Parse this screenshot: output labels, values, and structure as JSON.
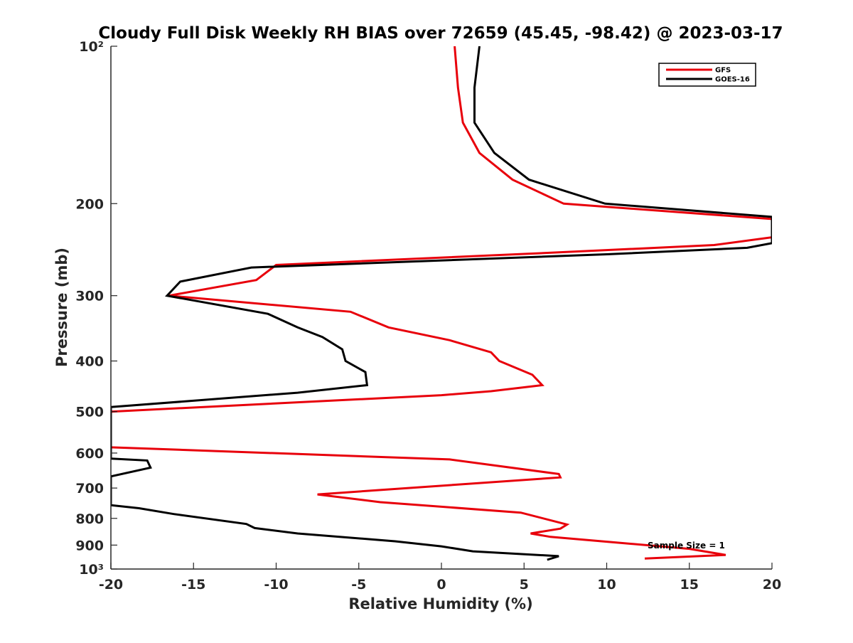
{
  "chart_data": {
    "type": "line",
    "title": "Cloudy Full Disk Weekly RH BIAS over 72659 (45.45, -98.42) @ 2023-03-17",
    "xlabel": "Relative Humidity (%)",
    "ylabel": "Pressure (mb)",
    "xlim": [
      -20,
      20
    ],
    "ylim": [
      100,
      1000
    ],
    "yscale": "log",
    "y_reversed": true,
    "grid": false,
    "legend_position": "top-right",
    "x_ticks": [
      -20,
      -15,
      -10,
      -5,
      0,
      5,
      10,
      15,
      20
    ],
    "x_tick_labels": [
      "-20",
      "-15",
      "-10",
      "-5",
      "0",
      "5",
      "10",
      "15",
      "20"
    ],
    "y_ticks": [
      100,
      200,
      300,
      400,
      500,
      600,
      700,
      800,
      900,
      1000
    ],
    "y_tick_labels": [
      "10²",
      "200",
      "300",
      "400",
      "500",
      "600",
      "700",
      "800",
      "900",
      "10³"
    ],
    "annotation": "Sample Size = 1",
    "series": [
      {
        "name": "GFS",
        "color": "#e8000b",
        "points": [
          [
            0.8,
            100
          ],
          [
            1.0,
            120
          ],
          [
            1.3,
            140
          ],
          [
            2.3,
            160
          ],
          [
            4.3,
            180
          ],
          [
            7.4,
            200
          ],
          [
            20.0,
            214
          ],
          [
            20.0,
            232
          ],
          [
            16.5,
            240
          ],
          [
            7.0,
            248
          ],
          [
            -10.0,
            262
          ],
          [
            -11.2,
            280
          ],
          [
            -16.5,
            300
          ],
          [
            -5.5,
            322
          ],
          [
            -3.2,
            345
          ],
          [
            0.5,
            365
          ],
          [
            3.0,
            385
          ],
          [
            3.5,
            400
          ],
          [
            5.5,
            425
          ],
          [
            6.1,
            445
          ],
          [
            3.0,
            457
          ],
          [
            0.0,
            465
          ],
          [
            -20.0,
            500
          ],
          [
            -20.0,
            585
          ],
          [
            0.5,
            617
          ],
          [
            7.1,
            658
          ],
          [
            7.2,
            668
          ],
          [
            -7.5,
            720
          ],
          [
            -3.7,
            745
          ],
          [
            4.8,
            780
          ],
          [
            7.6,
            822
          ],
          [
            7.2,
            837
          ],
          [
            5.4,
            855
          ],
          [
            6.6,
            868
          ],
          [
            15.0,
            915
          ],
          [
            17.2,
            940
          ],
          [
            12.3,
            955
          ]
        ]
      },
      {
        "name": "GOES-16",
        "color": "#000000",
        "points": [
          [
            2.3,
            100
          ],
          [
            2.0,
            120
          ],
          [
            2.0,
            140
          ],
          [
            3.2,
            160
          ],
          [
            5.3,
            180
          ],
          [
            9.9,
            200
          ],
          [
            20.0,
            212
          ],
          [
            20.0,
            238
          ],
          [
            18.5,
            243
          ],
          [
            10.0,
            250
          ],
          [
            -11.5,
            265
          ],
          [
            -15.8,
            282
          ],
          [
            -16.6,
            300
          ],
          [
            -10.5,
            325
          ],
          [
            -8.7,
            345
          ],
          [
            -7.2,
            360
          ],
          [
            -6.0,
            380
          ],
          [
            -5.8,
            400
          ],
          [
            -4.6,
            420
          ],
          [
            -4.5,
            445
          ],
          [
            -8.7,
            460
          ],
          [
            -20.0,
            490
          ],
          [
            -20.0,
            615
          ],
          [
            -17.8,
            620
          ],
          [
            -17.6,
            640
          ],
          [
            -20.0,
            665
          ],
          [
            -20.0,
            755
          ],
          [
            -18.3,
            765
          ],
          [
            -16.2,
            785
          ],
          [
            -11.8,
            820
          ],
          [
            -11.3,
            835
          ],
          [
            -8.7,
            855
          ],
          [
            -2.8,
            885
          ],
          [
            0.0,
            905
          ],
          [
            1.9,
            925
          ],
          [
            7.1,
            945
          ],
          [
            6.4,
            960
          ]
        ]
      }
    ]
  }
}
